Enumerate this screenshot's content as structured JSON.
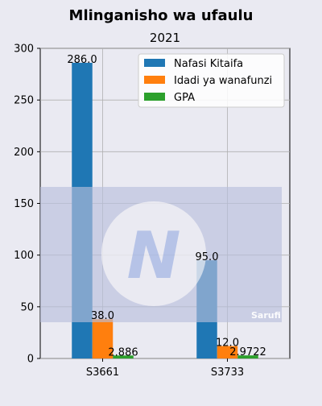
{
  "chart_data": {
    "type": "bar",
    "title": "Mlinganisho wa ufaulu",
    "subtitle": "2021",
    "xlabel": "",
    "ylabel": "",
    "categories": [
      "S3661",
      "S3733"
    ],
    "series": [
      {
        "name": "Nafasi Kitaifa",
        "color": "#1f77b4",
        "values": [
          286.0,
          95.0
        ],
        "labels": [
          "286.0",
          "95.0"
        ]
      },
      {
        "name": "Idadi ya wanafunzi",
        "color": "#ff7f0e",
        "values": [
          38.0,
          12.0
        ],
        "labels": [
          "38.0",
          "12.0"
        ]
      },
      {
        "name": "GPA",
        "color": "#2ca02c",
        "values": [
          2.886,
          2.9722
        ],
        "labels": [
          "2.886",
          "2.9722"
        ]
      }
    ],
    "ylim": [
      0,
      300
    ],
    "yticks": [
      0,
      50,
      100,
      150,
      200,
      250,
      300
    ],
    "grid": true,
    "legend_position": "top-right"
  },
  "watermark": {
    "text": "Sarufi",
    "logo_letter": "N"
  }
}
